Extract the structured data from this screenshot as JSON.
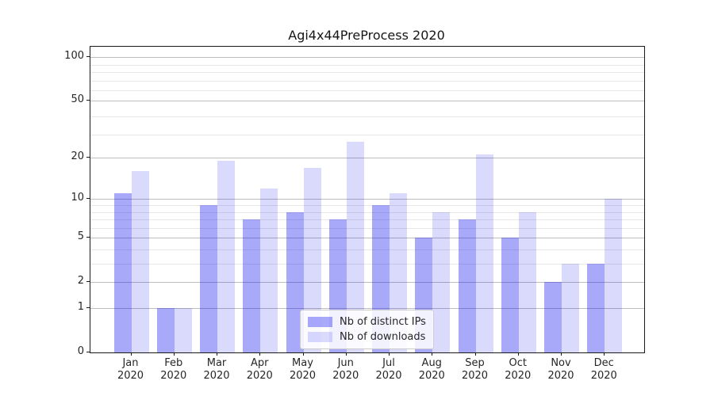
{
  "title": "Agi4x44PreProcess 2020",
  "chart_data": {
    "type": "bar",
    "title": "Agi4x44PreProcess 2020",
    "categories": [
      "Jan 2020",
      "Feb 2020",
      "Mar 2020",
      "Apr 2020",
      "May 2020",
      "Jun 2020",
      "Jul 2020",
      "Aug 2020",
      "Sep 2020",
      "Oct 2020",
      "Nov 2020",
      "Dec 2020"
    ],
    "months": [
      "Jan",
      "Feb",
      "Mar",
      "Apr",
      "May",
      "Jun",
      "Jul",
      "Aug",
      "Sep",
      "Oct",
      "Nov",
      "Dec"
    ],
    "year": "2020",
    "series": [
      {
        "name": "Nb of distinct IPs",
        "color": "rgba(8,8,240,0.35)",
        "values": [
          11,
          1,
          9,
          7,
          8,
          7,
          9,
          5,
          7,
          5,
          2,
          3
        ]
      },
      {
        "name": "Nb of downloads",
        "color": "rgba(8,8,240,0.15)",
        "values": [
          16,
          1,
          19,
          12,
          17,
          26,
          11,
          8,
          21,
          8,
          3,
          10
        ]
      }
    ],
    "xlabel": "",
    "ylabel": "",
    "yscale": "log10(1+y)",
    "yticks": [
      0,
      1,
      2,
      5,
      10,
      20,
      50,
      100
    ],
    "minor_gridlines_at": [
      3,
      4,
      6,
      7,
      8,
      9,
      29,
      39,
      59,
      69,
      79,
      89
    ],
    "ylim": [
      0,
      118
    ],
    "grid": "both",
    "legend_position": "lower center",
    "colors": {
      "axis": "#1a1a1a",
      "grid_major": "#bdbdbd",
      "grid_minor": "#e7e7e7",
      "text": "#262626"
    }
  }
}
